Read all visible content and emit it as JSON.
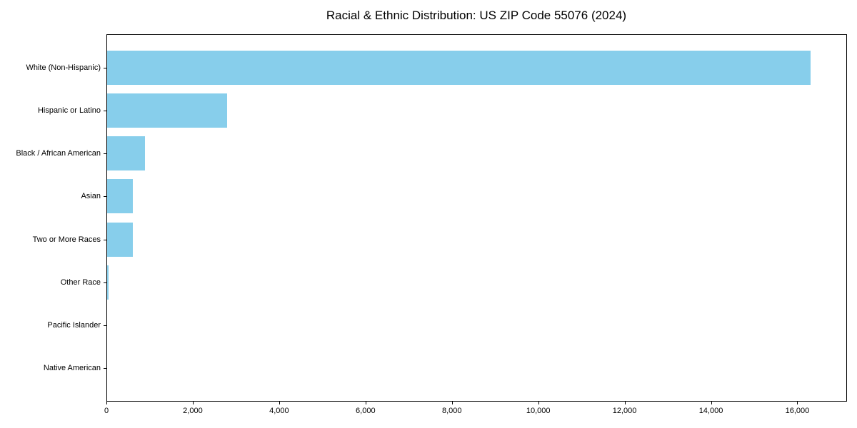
{
  "chart_data": {
    "type": "bar",
    "orientation": "horizontal",
    "title": "Racial & Ethnic Distribution: US ZIP Code 55076 (2024)",
    "categories": [
      "White (Non-Hispanic)",
      "Hispanic or Latino",
      "Black / African American",
      "Asian",
      "Two or More Races",
      "Other Race",
      "Pacific Islander",
      "Native American"
    ],
    "values": [
      16300,
      2800,
      890,
      620,
      610,
      55,
      15,
      5
    ],
    "xlabel": "",
    "ylabel": "",
    "xlim": [
      0,
      17150
    ],
    "xticks": [
      0,
      2000,
      4000,
      6000,
      8000,
      10000,
      12000,
      14000,
      16000
    ],
    "xtick_labels": [
      "0",
      "2,000",
      "4,000",
      "6,000",
      "8,000",
      "10,000",
      "12,000",
      "14,000",
      "16,000"
    ],
    "bar_color": "#87CEEB",
    "grid": false,
    "legend": null
  }
}
